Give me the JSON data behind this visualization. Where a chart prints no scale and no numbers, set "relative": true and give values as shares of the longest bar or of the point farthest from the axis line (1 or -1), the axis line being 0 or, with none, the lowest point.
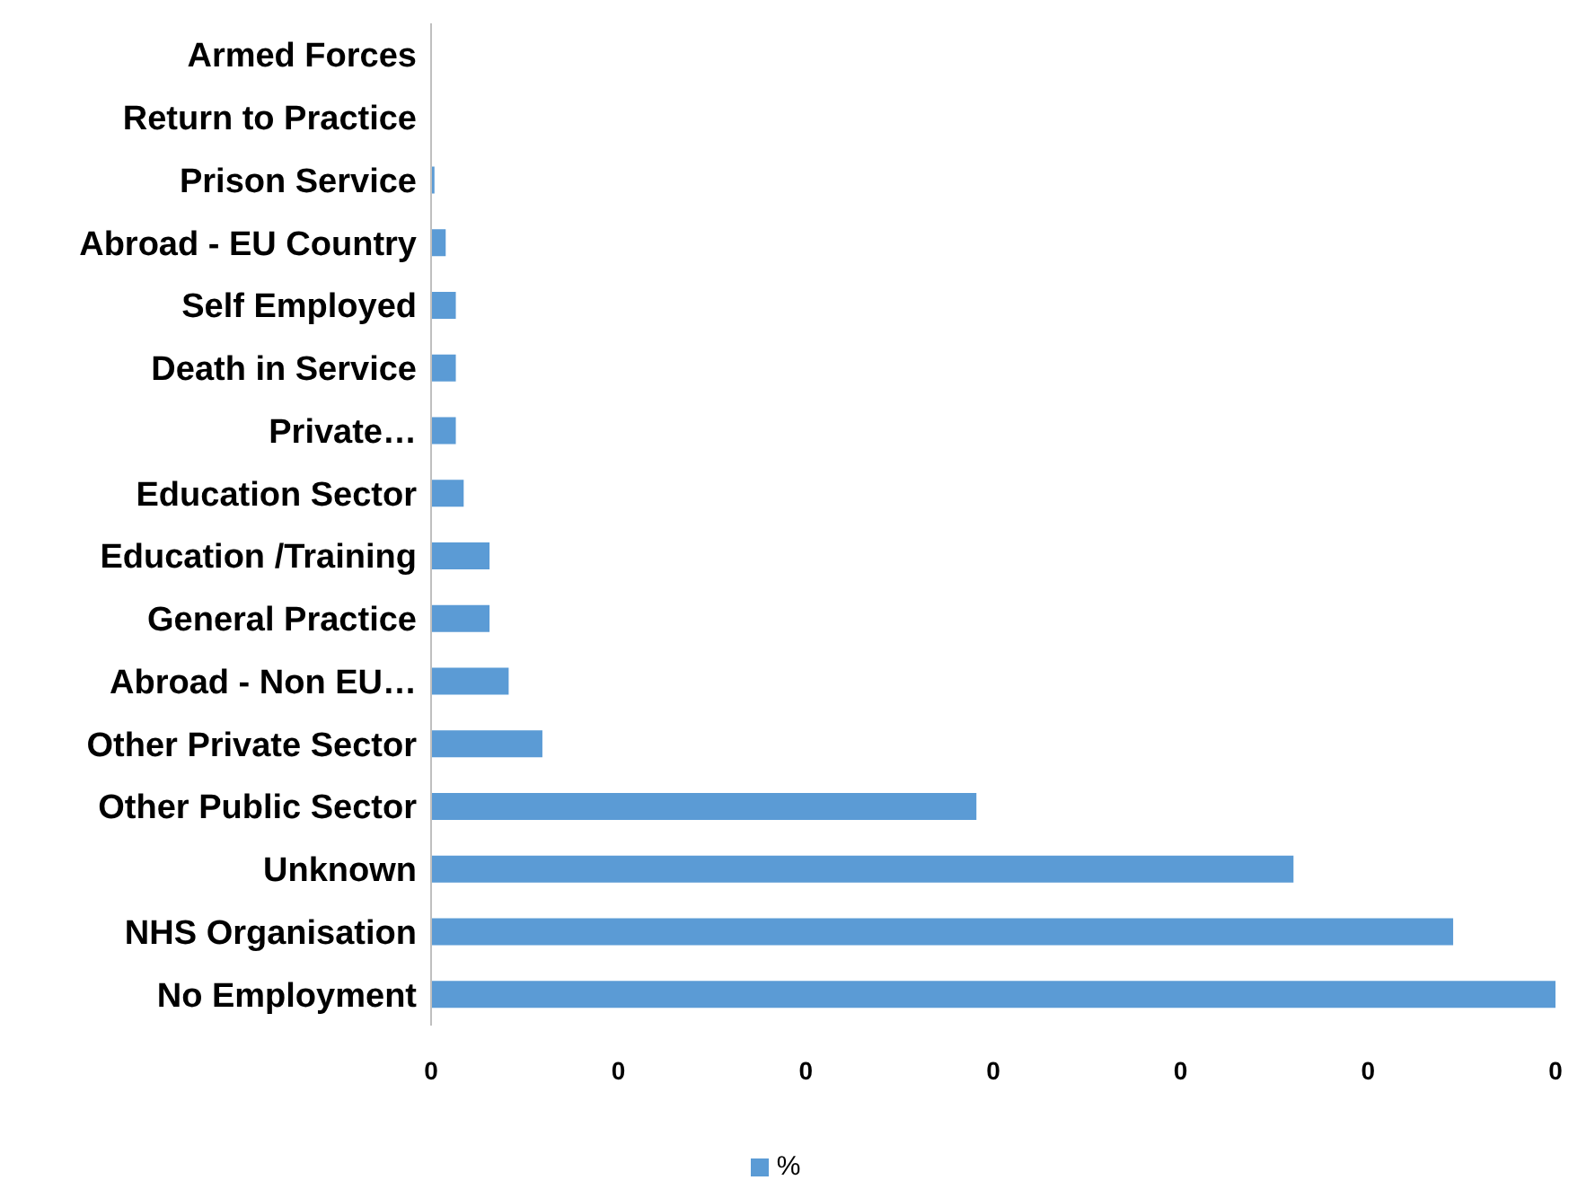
{
  "chart_data": {
    "type": "bar",
    "orientation": "horizontal",
    "relative": true,
    "categories": [
      "Armed Forces",
      "Return to Practice",
      "Prison Service",
      "Abroad - EU Country",
      "Self Employed",
      "Death in Service",
      "Private…",
      "Education Sector",
      "Education /Training",
      "General Practice",
      "Abroad - Non EU…",
      "Other Private Sector",
      "Other Public Sector",
      "Unknown",
      "NHS Organisation",
      "No Employment"
    ],
    "series": [
      {
        "name": "%",
        "color": "#5b9bd5",
        "values": [
          0,
          0,
          0.003,
          0.013,
          0.022,
          0.022,
          0.022,
          0.029,
          0.052,
          0.052,
          0.069,
          0.099,
          0.485,
          0.767,
          0.909,
          1
        ]
      }
    ],
    "annotations": [
      "0",
      "0",
      "0",
      "0",
      "0",
      "0",
      "0"
    ],
    "grid": false,
    "legend": "bottom"
  }
}
